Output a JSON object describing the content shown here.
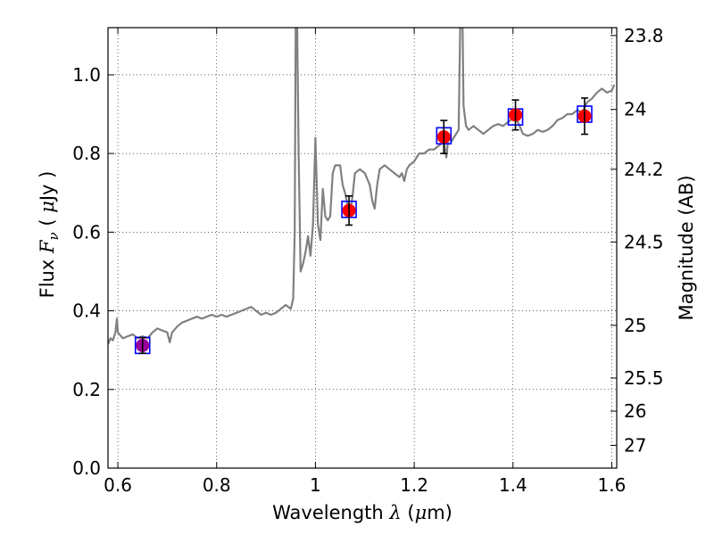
{
  "chart_data": {
    "type": "line",
    "xlabel_prefix": "Wavelength  ",
    "xlabel_symbol": "λ",
    "xlabel_unit_open": " (",
    "xlabel_unit_mu": "μ",
    "xlabel_unit_close": "m)",
    "ylabel_prefix": "Flux  ",
    "ylabel_symbol": "F",
    "ylabel_sub": "ν",
    "ylabel_unit_open": "  ( ",
    "ylabel_unit_mu": "μ",
    "ylabel_unit_close": "Jy )",
    "y2label": "Magnitude (AB)",
    "xlim": [
      0.58,
      1.61
    ],
    "ylim": [
      0.0,
      1.12
    ],
    "x_ticks": [
      {
        "value": 0.6,
        "label": "0.6"
      },
      {
        "value": 0.8,
        "label": "0.8"
      },
      {
        "value": 1.0,
        "label": "1"
      },
      {
        "value": 1.2,
        "label": "1.2"
      },
      {
        "value": 1.4,
        "label": "1.4"
      },
      {
        "value": 1.6,
        "label": "1.6"
      }
    ],
    "y_ticks": [
      {
        "value": 0.0,
        "label": "0.0"
      },
      {
        "value": 0.2,
        "label": "0.2"
      },
      {
        "value": 0.4,
        "label": "0.4"
      },
      {
        "value": 0.6,
        "label": "0.6"
      },
      {
        "value": 0.8,
        "label": "0.8"
      },
      {
        "value": 1.0,
        "label": "1.0"
      }
    ],
    "y2_ticks": [
      {
        "flux": 1.1,
        "label": "23.8"
      },
      {
        "flux": 0.912,
        "label": "24"
      },
      {
        "flux": 0.76,
        "label": "24.2"
      },
      {
        "flux": 0.575,
        "label": "24.5"
      },
      {
        "flux": 0.363,
        "label": "25"
      },
      {
        "flux": 0.229,
        "label": "25.5"
      },
      {
        "flux": 0.145,
        "label": "26"
      },
      {
        "flux": 0.058,
        "label": "27"
      }
    ],
    "grid": true,
    "series": [
      {
        "type": "line",
        "color": "#808080",
        "points": [
          [
            0.58,
            0.315
          ],
          [
            0.585,
            0.33
          ],
          [
            0.59,
            0.325
          ],
          [
            0.595,
            0.345
          ],
          [
            0.598,
            0.38
          ],
          [
            0.6,
            0.345
          ],
          [
            0.61,
            0.33
          ],
          [
            0.62,
            0.335
          ],
          [
            0.63,
            0.34
          ],
          [
            0.64,
            0.33
          ],
          [
            0.65,
            0.335
          ],
          [
            0.66,
            0.33
          ],
          [
            0.67,
            0.345
          ],
          [
            0.68,
            0.355
          ],
          [
            0.69,
            0.35
          ],
          [
            0.7,
            0.345
          ],
          [
            0.705,
            0.32
          ],
          [
            0.71,
            0.345
          ],
          [
            0.72,
            0.36
          ],
          [
            0.73,
            0.37
          ],
          [
            0.74,
            0.375
          ],
          [
            0.75,
            0.38
          ],
          [
            0.76,
            0.385
          ],
          [
            0.77,
            0.38
          ],
          [
            0.78,
            0.385
          ],
          [
            0.79,
            0.39
          ],
          [
            0.8,
            0.385
          ],
          [
            0.81,
            0.39
          ],
          [
            0.82,
            0.385
          ],
          [
            0.83,
            0.39
          ],
          [
            0.84,
            0.395
          ],
          [
            0.85,
            0.4
          ],
          [
            0.86,
            0.405
          ],
          [
            0.87,
            0.41
          ],
          [
            0.88,
            0.4
          ],
          [
            0.89,
            0.39
          ],
          [
            0.9,
            0.395
          ],
          [
            0.91,
            0.39
          ],
          [
            0.92,
            0.395
          ],
          [
            0.93,
            0.405
          ],
          [
            0.94,
            0.415
          ],
          [
            0.95,
            0.405
          ],
          [
            0.955,
            0.43
          ],
          [
            0.958,
            0.6
          ],
          [
            0.96,
            1.12
          ],
          [
            0.963,
            1.12
          ],
          [
            0.966,
            0.8
          ],
          [
            0.97,
            0.5
          ],
          [
            0.975,
            0.52
          ],
          [
            0.98,
            0.55
          ],
          [
            0.985,
            0.59
          ],
          [
            0.99,
            0.54
          ],
          [
            0.995,
            0.62
          ],
          [
            1.0,
            0.84
          ],
          [
            1.005,
            0.62
          ],
          [
            1.01,
            0.58
          ],
          [
            1.015,
            0.71
          ],
          [
            1.02,
            0.64
          ],
          [
            1.025,
            0.63
          ],
          [
            1.03,
            0.64
          ],
          [
            1.035,
            0.75
          ],
          [
            1.04,
            0.77
          ],
          [
            1.05,
            0.77
          ],
          [
            1.055,
            0.72
          ],
          [
            1.06,
            0.7
          ],
          [
            1.065,
            0.67
          ],
          [
            1.07,
            0.65
          ],
          [
            1.075,
            0.69
          ],
          [
            1.08,
            0.75
          ],
          [
            1.09,
            0.76
          ],
          [
            1.1,
            0.75
          ],
          [
            1.11,
            0.72
          ],
          [
            1.115,
            0.68
          ],
          [
            1.12,
            0.66
          ],
          [
            1.125,
            0.72
          ],
          [
            1.13,
            0.76
          ],
          [
            1.14,
            0.77
          ],
          [
            1.15,
            0.76
          ],
          [
            1.16,
            0.75
          ],
          [
            1.17,
            0.74
          ],
          [
            1.175,
            0.75
          ],
          [
            1.18,
            0.73
          ],
          [
            1.185,
            0.76
          ],
          [
            1.19,
            0.77
          ],
          [
            1.2,
            0.78
          ],
          [
            1.21,
            0.8
          ],
          [
            1.22,
            0.8
          ],
          [
            1.23,
            0.81
          ],
          [
            1.24,
            0.81
          ],
          [
            1.25,
            0.82
          ],
          [
            1.26,
            0.83
          ],
          [
            1.265,
            0.79
          ],
          [
            1.27,
            0.85
          ],
          [
            1.275,
            0.83
          ],
          [
            1.28,
            0.84
          ],
          [
            1.285,
            0.85
          ],
          [
            1.29,
            0.86
          ],
          [
            1.293,
            1.12
          ],
          [
            1.298,
            1.12
          ],
          [
            1.3,
            0.92
          ],
          [
            1.305,
            0.87
          ],
          [
            1.31,
            0.86
          ],
          [
            1.32,
            0.87
          ],
          [
            1.33,
            0.86
          ],
          [
            1.34,
            0.85
          ],
          [
            1.35,
            0.86
          ],
          [
            1.36,
            0.87
          ],
          [
            1.37,
            0.875
          ],
          [
            1.38,
            0.87
          ],
          [
            1.39,
            0.88
          ],
          [
            1.4,
            0.89
          ],
          [
            1.41,
            0.88
          ],
          [
            1.42,
            0.85
          ],
          [
            1.43,
            0.845
          ],
          [
            1.44,
            0.85
          ],
          [
            1.45,
            0.86
          ],
          [
            1.46,
            0.855
          ],
          [
            1.47,
            0.86
          ],
          [
            1.48,
            0.87
          ],
          [
            1.49,
            0.885
          ],
          [
            1.5,
            0.89
          ],
          [
            1.51,
            0.9
          ],
          [
            1.52,
            0.9
          ],
          [
            1.53,
            0.91
          ],
          [
            1.54,
            0.905
          ],
          [
            1.55,
            0.93
          ],
          [
            1.56,
            0.94
          ],
          [
            1.57,
            0.955
          ],
          [
            1.58,
            0.965
          ],
          [
            1.59,
            0.955
          ],
          [
            1.6,
            0.96
          ],
          [
            1.605,
            0.975
          ]
        ]
      }
    ],
    "model_boxes": {
      "name": "",
      "color": "#0000ff",
      "points": [
        {
          "x": 0.65,
          "y": 0.312
        },
        {
          "x": 1.068,
          "y": 0.658
        },
        {
          "x": 1.26,
          "y": 0.845
        },
        {
          "x": 1.405,
          "y": 0.893
        },
        {
          "x": 1.545,
          "y": 0.9
        }
      ]
    },
    "observations": {
      "name": "",
      "points": [
        {
          "x": 0.65,
          "y": 0.312,
          "err": 0.02,
          "color": "#990099"
        },
        {
          "x": 1.068,
          "y": 0.655,
          "err": 0.037,
          "color": "#ff0000"
        },
        {
          "x": 1.26,
          "y": 0.842,
          "err": 0.042,
          "color": "#ff0000"
        },
        {
          "x": 1.405,
          "y": 0.898,
          "err": 0.038,
          "color": "#ff0000"
        },
        {
          "x": 1.545,
          "y": 0.895,
          "err": 0.046,
          "color": "#ff0000"
        }
      ]
    }
  }
}
